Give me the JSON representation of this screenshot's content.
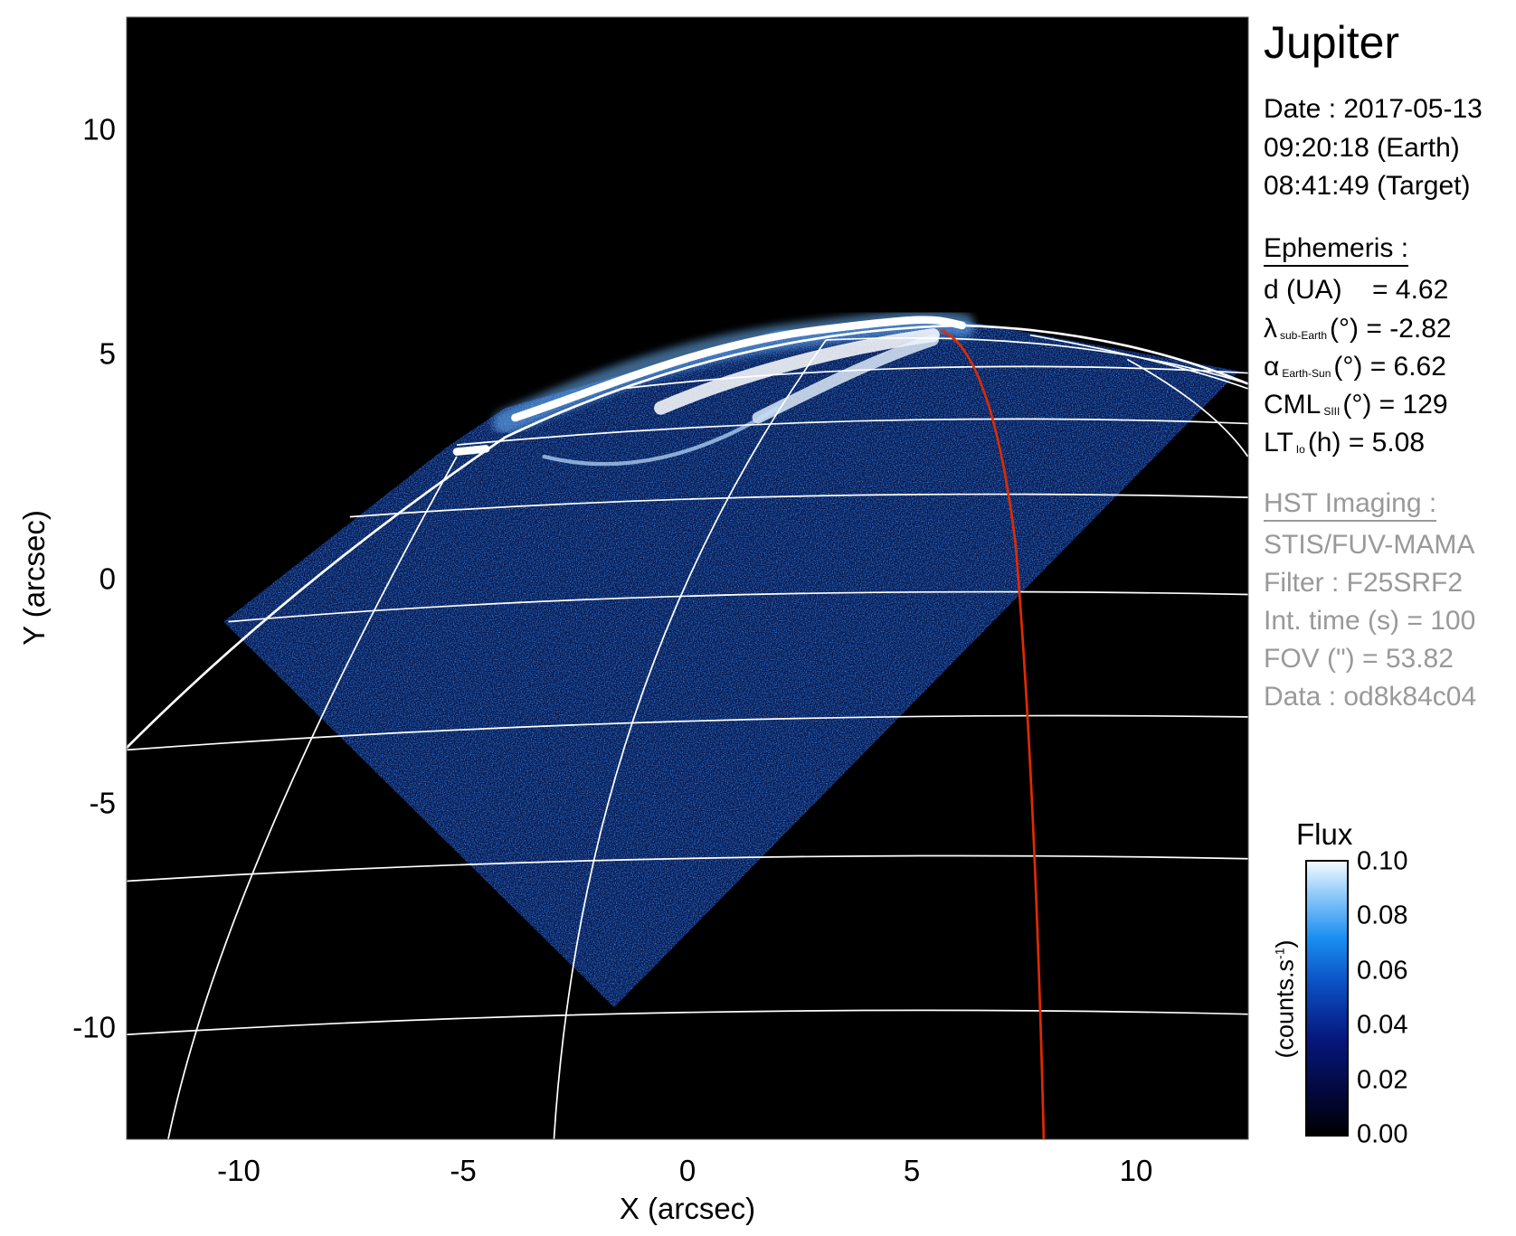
{
  "chart_data": {
    "type": "heatmap",
    "xlabel": "X (arcsec)",
    "ylabel": "Y (arcsec)",
    "xlim": [
      -12.5,
      12.5
    ],
    "ylim": [
      -12.5,
      12.5
    ],
    "xticks": [
      "-10",
      "-5",
      "0",
      "5",
      "10"
    ],
    "yticks": [
      "10",
      "5",
      "0",
      "-5",
      "-10"
    ],
    "xtick_values": [
      -10,
      -5,
      0,
      5,
      10
    ],
    "ytick_values": [
      10,
      5,
      0,
      -5,
      -10
    ],
    "grid": false,
    "overlay": "planetographic latitude/longitude grid (white), Io footprint meridian (red)",
    "colors": {
      "background": "#000000",
      "grid": "#ffffff",
      "highlight_meridian": "#e02a00"
    },
    "colorbar": {
      "title": "Flux",
      "unit_label": "(counts.s",
      "unit_sup": "-1",
      "unit_close": ")",
      "range": [
        0.0,
        0.1
      ],
      "ticks": [
        "0.10",
        "0.08",
        "0.06",
        "0.04",
        "0.02",
        "0.00"
      ],
      "tick_values": [
        0.1,
        0.08,
        0.06,
        0.04,
        0.02,
        0.0
      ],
      "colormap": [
        "#000000",
        "#06177e",
        "#1a8ef2",
        "#ffffff"
      ]
    }
  },
  "info": {
    "title": "Jupiter",
    "date": "Date : 2017-05-13",
    "time_earth": "09:20:18 (Earth)",
    "time_target": "08:41:49 (Target)",
    "ephemeris_header": "Ephemeris :",
    "ephemeris": [
      {
        "sym": "d (UA)",
        "sub": "",
        "rest": "    = 4.62"
      },
      {
        "sym": "λ",
        "sub": "sub-Earth",
        "rest": "(°) = -2.82"
      },
      {
        "sym": "α",
        "sub": "Earth-Sun",
        "rest": "(°) = 6.62"
      },
      {
        "sym": "CML",
        "sub": "SIII",
        "rest": "(°) = 129"
      },
      {
        "sym": "LT",
        "sub": "Io",
        "rest": "(h) = 5.08"
      }
    ],
    "hst_header": "HST Imaging :",
    "hst": [
      "STIS/FUV-MAMA",
      "Filter : F25SRF2",
      "Int. time (s) = 100",
      "FOV (\") = 53.82",
      "Data : od8k84c04"
    ]
  }
}
